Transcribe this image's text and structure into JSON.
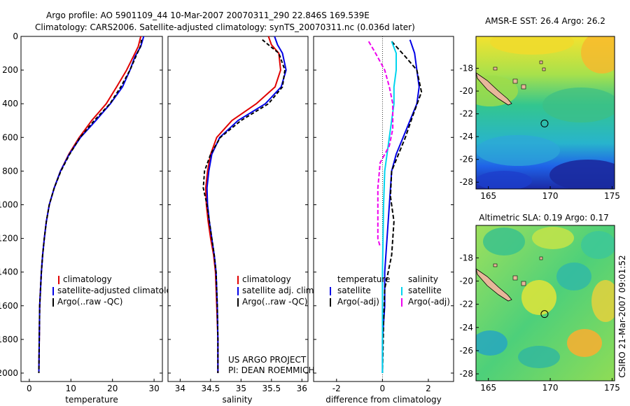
{
  "header": {
    "line1": "Argo profile: AO 5901109_44 10-Mar-2007 20070311_290 22.846S 169.539E",
    "line2": "Climatology: CARS2006. Satellite-adjusted climatology: synTS_20070311.nc (0.036d later)"
  },
  "credit": {
    "line1": "US ARGO PROJECT",
    "line2": "PI: DEAN ROEMMICH"
  },
  "side_label": "CSIRO 21-Mar-2007 09:01:52",
  "colors": {
    "climatology": "#e00000",
    "satellite": "#0000e6",
    "argo": "#000000",
    "salinity_sat": "#00d4ee",
    "salinity_argo": "#ee00ee"
  },
  "chart_data": [
    {
      "type": "line",
      "name": "temperature-profile",
      "xlabel": "temperature",
      "xlim": [
        -2,
        32
      ],
      "ylim": [
        2050,
        0
      ],
      "xticks": [
        0,
        10,
        20,
        30
      ],
      "yticks": [
        0,
        200,
        400,
        600,
        800,
        1000,
        1200,
        1400,
        1600,
        1800,
        2000
      ],
      "legend": [
        "climatology",
        "satellite-adjusted climatology",
        "Argo(..raw -QC)"
      ],
      "series": [
        {
          "name": "climatology",
          "color": "#e00000",
          "dash": "",
          "x": [
            26.8,
            26.2,
            25.0,
            23.4,
            21.0,
            18.5,
            15.0,
            12.0,
            9.5,
            7.5,
            6.0,
            4.8,
            4.1,
            3.6,
            3.2,
            2.9,
            2.7,
            2.5,
            2.4,
            2.3
          ],
          "depth": [
            0,
            60,
            120,
            200,
            300,
            400,
            500,
            600,
            700,
            800,
            900,
            1000,
            1100,
            1200,
            1300,
            1400,
            1500,
            1600,
            1800,
            2000
          ]
        },
        {
          "name": "satellite",
          "color": "#0000e6",
          "dash": "",
          "x": [
            27.5,
            26.8,
            25.4,
            24.2,
            22.4,
            19.5,
            16.0,
            12.3,
            9.6,
            7.5,
            6.0,
            4.8,
            4.1,
            3.6,
            3.2,
            2.9,
            2.7,
            2.5,
            2.4,
            2.3
          ],
          "depth": [
            0,
            60,
            120,
            200,
            300,
            400,
            500,
            600,
            700,
            800,
            900,
            1000,
            1100,
            1200,
            1300,
            1400,
            1500,
            1600,
            1800,
            2000
          ]
        },
        {
          "name": "argo",
          "color": "#000000",
          "dash": "5,3",
          "x": [
            27.0,
            26.7,
            25.6,
            24.2,
            22.0,
            19.4,
            15.6,
            12.2,
            9.7,
            7.6,
            6.0,
            4.8,
            4.1,
            3.6,
            3.2,
            2.9,
            2.7,
            2.5,
            2.4,
            2.3
          ],
          "depth": [
            20,
            60,
            120,
            200,
            300,
            400,
            500,
            600,
            700,
            800,
            900,
            1000,
            1100,
            1200,
            1300,
            1400,
            1500,
            1600,
            1800,
            2000
          ]
        }
      ]
    },
    {
      "type": "line",
      "name": "salinity-profile",
      "xlabel": "salinity",
      "xlim": [
        33.8,
        36.1
      ],
      "ylim": [
        2050,
        0
      ],
      "xticks": [
        34,
        34.5,
        35,
        35.5,
        36
      ],
      "legend": [
        "climatology",
        "satellite adj. clim.",
        "Argo(..raw -QC)"
      ],
      "series": [
        {
          "name": "climatology",
          "color": "#e00000",
          "dash": "",
          "x": [
            35.45,
            35.5,
            35.62,
            35.65,
            35.56,
            35.25,
            34.85,
            34.6,
            34.5,
            34.45,
            34.42,
            34.43,
            34.46,
            34.5,
            34.55,
            34.58,
            34.6,
            34.62,
            34.62
          ],
          "depth": [
            0,
            50,
            100,
            200,
            300,
            400,
            500,
            600,
            700,
            800,
            900,
            1000,
            1100,
            1200,
            1300,
            1400,
            1600,
            1800,
            2000
          ]
        },
        {
          "name": "satellite",
          "color": "#0000e6",
          "dash": "",
          "x": [
            35.55,
            35.6,
            35.68,
            35.74,
            35.66,
            35.4,
            34.95,
            34.65,
            34.52,
            34.47,
            34.44,
            34.45,
            34.48,
            34.52,
            34.56,
            34.59,
            34.61,
            34.62,
            34.62
          ],
          "depth": [
            0,
            50,
            100,
            200,
            300,
            400,
            500,
            600,
            700,
            800,
            900,
            1000,
            1100,
            1200,
            1300,
            1400,
            1600,
            1800,
            2000
          ]
        },
        {
          "name": "argo",
          "color": "#000000",
          "dash": "5,3",
          "x": [
            35.35,
            35.45,
            35.62,
            35.72,
            35.68,
            35.45,
            35.0,
            34.66,
            34.5,
            34.4,
            34.38,
            34.44,
            34.48,
            34.52,
            34.56,
            34.59,
            34.61,
            34.62,
            34.62
          ],
          "depth": [
            20,
            50,
            100,
            200,
            300,
            400,
            500,
            600,
            700,
            800,
            900,
            1000,
            1100,
            1200,
            1300,
            1400,
            1600,
            1800,
            2000
          ]
        }
      ]
    },
    {
      "type": "line",
      "name": "difference-profile",
      "xlabel": "difference from climatology",
      "xlim": [
        -3,
        3.1
      ],
      "ylim": [
        2050,
        0
      ],
      "xticks": [
        -2,
        0,
        2
      ],
      "legend_temperature": [
        "temperature",
        "satellite",
        "Argo(-adj)"
      ],
      "legend_salinity": [
        "salinity",
        "satellite",
        "Argo(-adj)"
      ],
      "series": [
        {
          "name": "temperature-satellite",
          "color": "#0000e6",
          "dash": "",
          "x": [
            1.2,
            1.4,
            1.5,
            1.6,
            1.5,
            1.2,
            0.9,
            0.6,
            0.4,
            0.3,
            0.2,
            0.1,
            0.1,
            0.0,
            0.0
          ],
          "depth": [
            20,
            100,
            200,
            300,
            400,
            500,
            600,
            700,
            800,
            1000,
            1200,
            1400,
            1600,
            1800,
            2000
          ]
        },
        {
          "name": "temperature-argo",
          "color": "#000000",
          "dash": "6,3",
          "x": [
            0.4,
            1.0,
            1.5,
            1.7,
            1.3,
            1.0,
            0.7,
            0.4,
            0.35,
            0.5,
            0.4,
            0.1,
            0.05,
            0.0
          ],
          "depth": [
            30,
            120,
            200,
            330,
            480,
            600,
            700,
            800,
            950,
            1100,
            1300,
            1500,
            1700,
            2000
          ]
        },
        {
          "name": "salinity-satellite",
          "color": "#00d4ee",
          "dash": "",
          "x": [
            0.4,
            0.6,
            0.6,
            0.5,
            0.5,
            0.4,
            0.3,
            0.2,
            0.1,
            0.05,
            0.0,
            0.0,
            0.0
          ],
          "depth": [
            30,
            100,
            200,
            300,
            400,
            500,
            600,
            700,
            800,
            1000,
            1400,
            1800,
            2000
          ]
        },
        {
          "name": "salinity-argo",
          "color": "#ee00ee",
          "dash": "6,3",
          "x": [
            -0.6,
            -0.3,
            0.1,
            0.3,
            0.45,
            0.45,
            0.3,
            -0.1,
            -0.2,
            -0.2,
            -0.2,
            -0.1
          ],
          "depth": [
            30,
            100,
            200,
            300,
            400,
            550,
            650,
            750,
            900,
            1100,
            1200,
            1250
          ]
        }
      ]
    },
    {
      "type": "heatmap",
      "name": "sst-map",
      "title": "AMSR-E SST: 26.4 Argo: 26.2",
      "xlim": [
        164,
        175.2
      ],
      "ylim": [
        -28.6,
        -15.2
      ],
      "xticks": [
        165,
        170,
        175
      ],
      "yticks": [
        -18,
        -20,
        -22,
        -24,
        -26,
        -28
      ],
      "argo_marker": [
        169.539,
        -22.846
      ]
    },
    {
      "type": "heatmap",
      "name": "sla-map",
      "title": "Altimetric SLA: 0.19 Argo: 0.17",
      "xlim": [
        164,
        175.2
      ],
      "ylim": [
        -28.6,
        -15.2
      ],
      "xticks": [
        165,
        170,
        175
      ],
      "yticks": [
        -18,
        -20,
        -22,
        -24,
        -26,
        -28
      ],
      "argo_marker": [
        169.539,
        -22.846
      ]
    }
  ]
}
